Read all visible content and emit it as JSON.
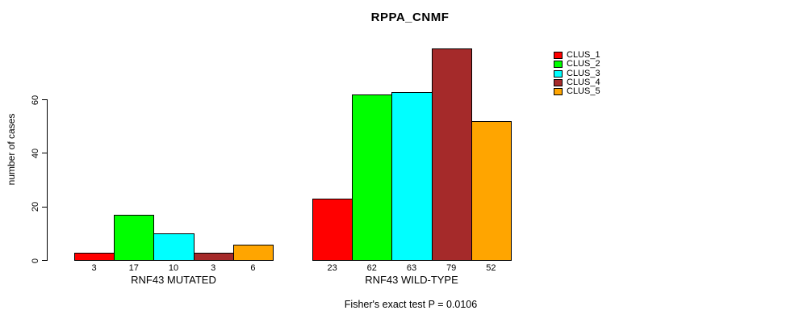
{
  "chart_data": {
    "type": "bar",
    "title": "RPPA_CNMF",
    "xlabel": "",
    "ylabel": "number of cases",
    "ylim": [
      0,
      80
    ],
    "yticks": [
      0,
      20,
      40,
      60
    ],
    "grid": false,
    "legend_position": "right-outside",
    "clusters": [
      "CLUS_1",
      "CLUS_2",
      "CLUS_3",
      "CLUS_4",
      "CLUS_5"
    ],
    "colors": [
      "#FF0000",
      "#00FF00",
      "#00FFFF",
      "#A52A2A",
      "#FFA500"
    ],
    "categories": [
      "RNF43 MUTATED",
      "RNF43 WILD-TYPE"
    ],
    "groups": [
      {
        "label": "RNF43 MUTATED",
        "values": [
          3,
          17,
          10,
          3,
          6
        ]
      },
      {
        "label": "RNF43 WILD-TYPE",
        "values": [
          23,
          62,
          63,
          79,
          52
        ]
      }
    ],
    "series": [
      {
        "name": "CLUS_1",
        "color": "#FF0000",
        "values": [
          3,
          23
        ]
      },
      {
        "name": "CLUS_2",
        "color": "#00FF00",
        "values": [
          17,
          62
        ]
      },
      {
        "name": "CLUS_3",
        "color": "#00FFFF",
        "values": [
          10,
          63
        ]
      },
      {
        "name": "CLUS_4",
        "color": "#A52A2A",
        "values": [
          3,
          79
        ]
      },
      {
        "name": "CLUS_5",
        "color": "#FFA500",
        "values": [
          6,
          52
        ]
      }
    ],
    "annotation": "Fisher's exact test P = 0.0106"
  }
}
